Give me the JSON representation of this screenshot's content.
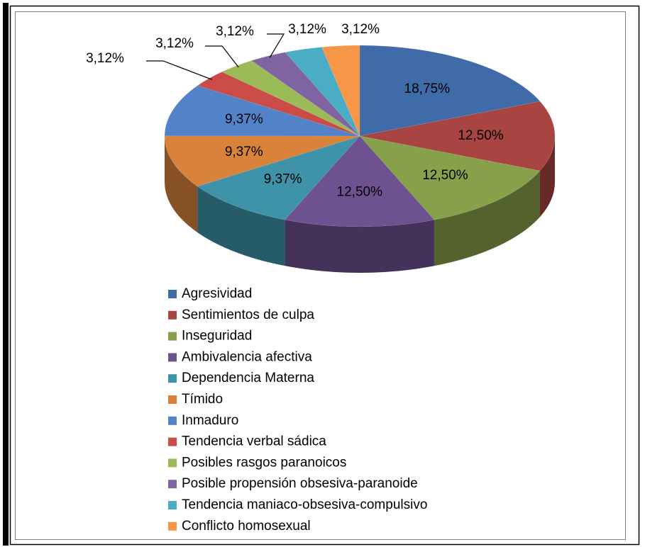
{
  "chart_data": {
    "type": "pie3d",
    "categories": [
      "Agresividad",
      "Sentimientos de culpa",
      "Inseguridad",
      "Ambivalencia afectiva",
      "Dependencia Materna",
      "Tímido",
      "Inmaduro",
      "Tendencia verbal sádica",
      "Posibles rasgos paranoicos",
      "Posible propensión obsesiva-paranoide",
      "Tendencia maniaco-obsesiva-compulsivo",
      "Conflicto homosexual"
    ],
    "values": [
      18.75,
      12.5,
      12.5,
      12.5,
      9.37,
      9.37,
      9.37,
      3.12,
      3.12,
      3.12,
      3.12,
      3.12
    ],
    "value_labels": [
      "18,75%",
      "12,50%",
      "12,50%",
      "12,50%",
      "9,37%",
      "9,37%",
      "9,37%",
      "3,12%",
      "3,12%",
      "3,12%",
      "3,12%",
      "3,12%"
    ],
    "colors": [
      "#3F6BA8",
      "#A84442",
      "#87A04A",
      "#6D5191",
      "#3E93A8",
      "#D8823A",
      "#5283C8",
      "#CB4B47",
      "#9BBB59",
      "#8064A2",
      "#4BACC6",
      "#F79646"
    ],
    "legend": "bottom"
  }
}
